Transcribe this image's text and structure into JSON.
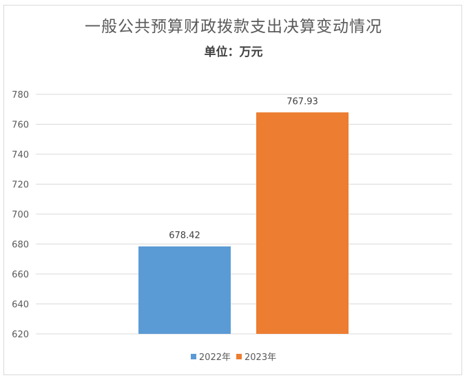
{
  "chart_data": {
    "type": "bar",
    "title": "一般公共预算财政拨款支出决算变动情况",
    "subtitle": "单位：万元",
    "categories": [
      "2022年",
      "2023年"
    ],
    "values": [
      678.42,
      767.93
    ],
    "data_labels": [
      "678.42",
      "767.93"
    ],
    "colors": [
      "#5b9bd5",
      "#ed7d31"
    ],
    "ylim": [
      620,
      780
    ],
    "yticks": [
      620,
      640,
      660,
      680,
      700,
      720,
      740,
      760,
      780
    ],
    "grid": true,
    "legend_position": "bottom",
    "xlabel": "",
    "ylabel": ""
  }
}
